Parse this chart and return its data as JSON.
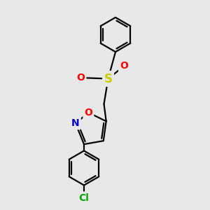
{
  "background_color": "#e8e8e8",
  "bond_color": "#000000",
  "bond_width": 1.6,
  "atom_colors": {
    "O": "#ff0000",
    "N": "#0000cc",
    "S": "#cccc00",
    "Cl": "#00aa00",
    "C": "#000000"
  },
  "font_size_atom": 10,
  "fig_width": 3.0,
  "fig_height": 3.0,
  "dpi": 100
}
